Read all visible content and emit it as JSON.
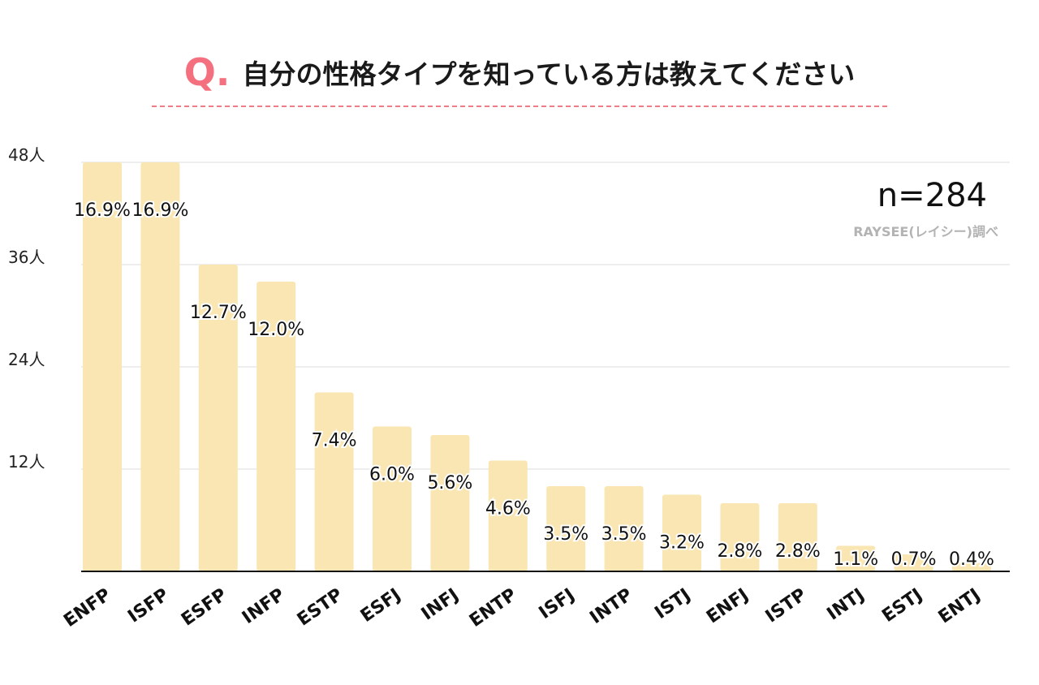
{
  "header": {
    "q_label": "Q.",
    "title": "自分の性格タイプを知っている方は教えてください"
  },
  "sample_size": "n=284",
  "source": "RAYSEE(レイシー)調べ",
  "colors": {
    "bar": "#fae6b2",
    "accent": "#f5707e",
    "gridline": "#eeeeee",
    "axis": "#111111"
  },
  "chart_data": {
    "type": "bar",
    "title": "",
    "xlabel": "",
    "ylabel": "",
    "ylim": [
      0,
      48
    ],
    "y_ticks": [
      "12人",
      "24人",
      "36人",
      "48人"
    ],
    "y_tick_values": [
      12,
      24,
      36,
      48
    ],
    "grid": true,
    "categories": [
      "ENFP",
      "ISFP",
      "ESFP",
      "INFP",
      "ESTP",
      "ESFJ",
      "INFJ",
      "ENTP",
      "ISFJ",
      "INTP",
      "ISTJ",
      "ENFJ",
      "ISTP",
      "INTJ",
      "ESTJ",
      "ENTJ"
    ],
    "values": [
      48,
      48,
      36,
      34,
      21,
      17,
      16,
      13,
      10,
      10,
      9,
      8,
      8,
      3,
      2,
      1
    ],
    "labels": [
      "16.9%",
      "16.9%",
      "12.7%",
      "12.0%",
      "7.4%",
      "6.0%",
      "5.6%",
      "4.6%",
      "3.5%",
      "3.5%",
      "3.2%",
      "2.8%",
      "2.8%",
      "1.1%",
      "0.7%",
      "0.4%"
    ]
  }
}
